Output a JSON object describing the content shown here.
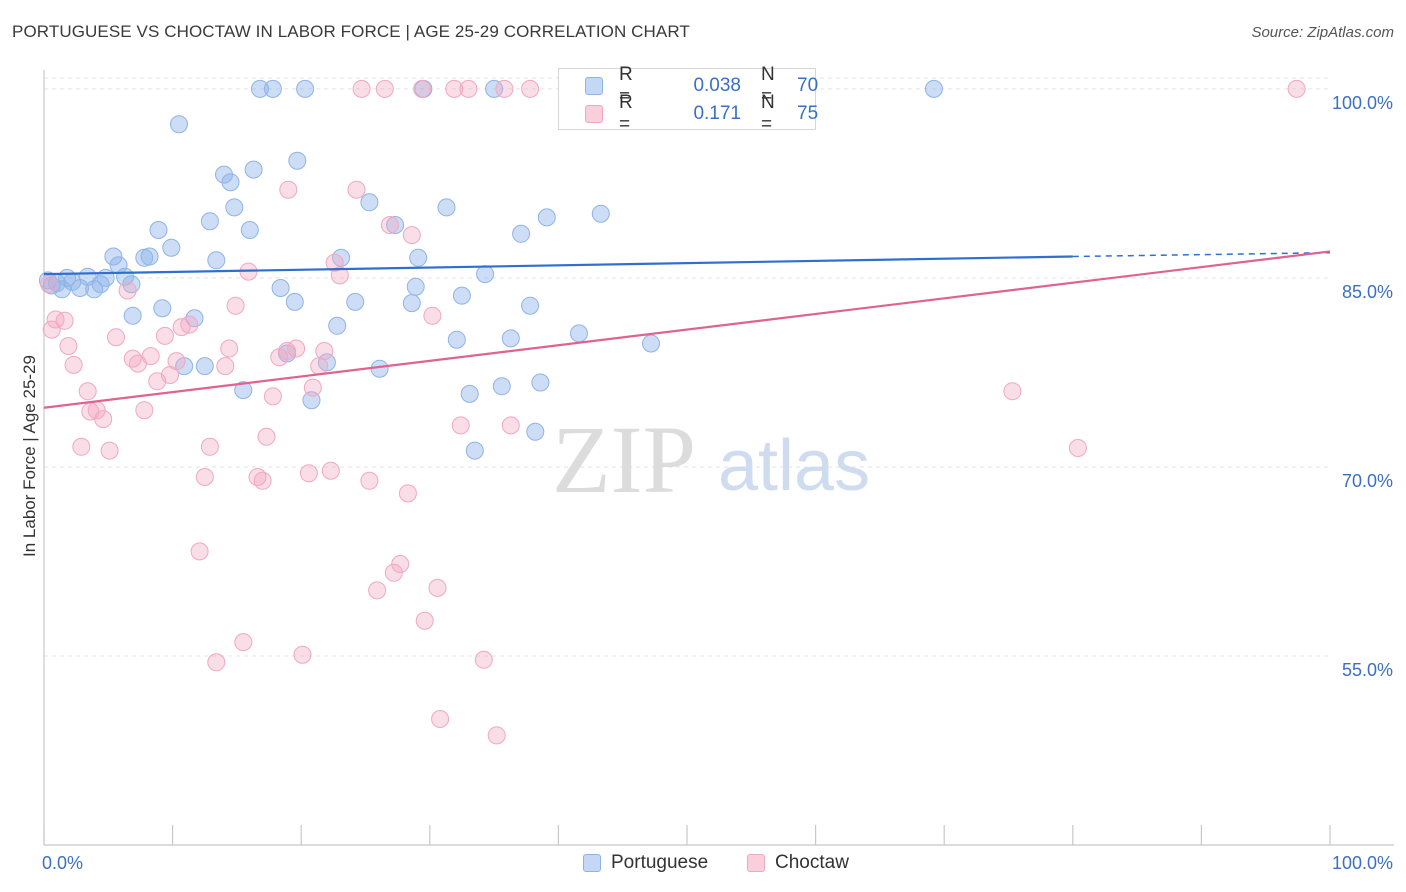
{
  "title": "PORTUGUESE VS CHOCTAW IN LABOR FORCE | AGE 25-29 CORRELATION CHART",
  "source": "Source: ZipAtlas.com",
  "watermark": {
    "zip": "ZIP",
    "atlas": "atlas"
  },
  "legend_box": {
    "rows": [
      {
        "r_label": "R =",
        "r_value": "0.038",
        "n_label": "N =",
        "n_value": "70",
        "color": "#8fb4e8"
      },
      {
        "r_label": "R =",
        "r_value": "0.171",
        "n_label": "N =",
        "n_value": "75",
        "color": "#f2a7c0"
      }
    ]
  },
  "chart_data": {
    "type": "scatter",
    "title": "PORTUGUESE VS CHOCTAW IN LABOR FORCE | AGE 25-29 CORRELATION CHART",
    "xlabel": "",
    "ylabel": "In Labor Force | Age 25-29",
    "xlim": [
      0,
      100
    ],
    "ylim": [
      40,
      101.5
    ],
    "x_tick_labels": [
      {
        "value": 0,
        "label": "0.0%"
      },
      {
        "value": 100,
        "label": "100.0%"
      }
    ],
    "y_tick_labels": [
      {
        "value": 100,
        "label": "100.0%"
      },
      {
        "value": 85,
        "label": "85.0%"
      },
      {
        "value": 70,
        "label": "70.0%"
      },
      {
        "value": 55,
        "label": "55.0%"
      }
    ],
    "grid": true,
    "legend": [
      "Portuguese",
      "Choctaw"
    ],
    "series": [
      {
        "name": "Portuguese",
        "color": "#8fb4e8",
        "line_color": "#2f6fd0",
        "trend": {
          "x0": 0,
          "y0": 85.3,
          "x1": 80,
          "y1": 86.7,
          "dash_to_x": 100,
          "dash_to_y": 87.0
        },
        "points": [
          [
            0.3,
            84.8
          ],
          [
            0.6,
            84.4
          ],
          [
            1.0,
            84.6
          ],
          [
            1.4,
            84.1
          ],
          [
            1.8,
            85.0
          ],
          [
            2.2,
            84.7
          ],
          [
            2.8,
            84.2
          ],
          [
            3.4,
            85.1
          ],
          [
            3.9,
            84.1
          ],
          [
            4.4,
            84.5
          ],
          [
            4.8,
            85.0
          ],
          [
            5.4,
            86.7
          ],
          [
            5.8,
            86.0
          ],
          [
            6.3,
            85.1
          ],
          [
            6.8,
            84.5
          ],
          [
            6.9,
            82.0
          ],
          [
            7.8,
            86.6
          ],
          [
            8.2,
            86.7
          ],
          [
            8.9,
            88.8
          ],
          [
            9.2,
            82.6
          ],
          [
            9.9,
            87.4
          ],
          [
            10.5,
            97.2
          ],
          [
            10.9,
            78.0
          ],
          [
            11.7,
            81.8
          ],
          [
            12.5,
            78.0
          ],
          [
            12.9,
            89.5
          ],
          [
            13.4,
            86.4
          ],
          [
            14.0,
            93.2
          ],
          [
            14.5,
            92.6
          ],
          [
            14.8,
            90.6
          ],
          [
            15.5,
            76.1
          ],
          [
            16.0,
            88.8
          ],
          [
            16.3,
            93.6
          ],
          [
            16.8,
            100.0
          ],
          [
            17.8,
            100.0
          ],
          [
            18.4,
            84.2
          ],
          [
            18.9,
            79.0
          ],
          [
            19.5,
            83.1
          ],
          [
            19.7,
            94.3
          ],
          [
            20.3,
            100.0
          ],
          [
            20.8,
            75.3
          ],
          [
            22.0,
            78.3
          ],
          [
            22.8,
            81.2
          ],
          [
            23.1,
            86.6
          ],
          [
            24.2,
            83.1
          ],
          [
            25.3,
            91.0
          ],
          [
            26.1,
            77.8
          ],
          [
            27.3,
            89.2
          ],
          [
            28.6,
            83.0
          ],
          [
            28.9,
            84.3
          ],
          [
            29.1,
            86.6
          ],
          [
            29.5,
            100.0
          ],
          [
            31.3,
            90.6
          ],
          [
            32.1,
            80.1
          ],
          [
            32.5,
            83.6
          ],
          [
            33.1,
            75.8
          ],
          [
            33.5,
            71.3
          ],
          [
            34.3,
            85.3
          ],
          [
            35.0,
            100.0
          ],
          [
            35.6,
            76.4
          ],
          [
            36.3,
            80.2
          ],
          [
            37.1,
            88.5
          ],
          [
            37.8,
            82.8
          ],
          [
            38.2,
            72.8
          ],
          [
            38.6,
            76.7
          ],
          [
            39.1,
            89.8
          ],
          [
            41.6,
            80.6
          ],
          [
            43.3,
            90.1
          ],
          [
            47.2,
            79.8
          ],
          [
            69.2,
            100.0
          ]
        ]
      },
      {
        "name": "Choctaw",
        "color": "#f2a7c0",
        "line_color": "#e0628f",
        "trend": {
          "x0": 0,
          "y0": 74.7,
          "x1": 100,
          "y1": 87.1
        },
        "points": [
          [
            0.4,
            84.5
          ],
          [
            0.6,
            80.9
          ],
          [
            0.9,
            81.7
          ],
          [
            1.6,
            81.6
          ],
          [
            1.9,
            79.6
          ],
          [
            2.3,
            78.1
          ],
          [
            2.9,
            71.6
          ],
          [
            3.4,
            76.0
          ],
          [
            3.6,
            74.4
          ],
          [
            4.1,
            74.5
          ],
          [
            4.6,
            73.8
          ],
          [
            5.1,
            71.3
          ],
          [
            5.6,
            80.3
          ],
          [
            6.5,
            84.0
          ],
          [
            6.9,
            78.6
          ],
          [
            7.3,
            78.2
          ],
          [
            7.8,
            74.5
          ],
          [
            8.3,
            78.8
          ],
          [
            8.8,
            76.8
          ],
          [
            9.4,
            80.4
          ],
          [
            9.8,
            77.3
          ],
          [
            10.3,
            78.4
          ],
          [
            10.7,
            81.1
          ],
          [
            11.3,
            81.3
          ],
          [
            12.1,
            63.3
          ],
          [
            12.5,
            69.2
          ],
          [
            12.9,
            71.6
          ],
          [
            13.4,
            54.5
          ],
          [
            14.1,
            78.0
          ],
          [
            14.4,
            79.4
          ],
          [
            14.9,
            82.8
          ],
          [
            15.5,
            56.1
          ],
          [
            15.9,
            85.5
          ],
          [
            16.6,
            69.2
          ],
          [
            17.0,
            68.9
          ],
          [
            17.3,
            72.4
          ],
          [
            17.8,
            75.6
          ],
          [
            18.3,
            78.7
          ],
          [
            18.9,
            79.2
          ],
          [
            19.0,
            92.0
          ],
          [
            19.6,
            79.4
          ],
          [
            20.1,
            55.1
          ],
          [
            20.6,
            69.5
          ],
          [
            20.9,
            76.3
          ],
          [
            21.4,
            78.0
          ],
          [
            21.8,
            79.2
          ],
          [
            22.3,
            69.7
          ],
          [
            22.6,
            86.2
          ],
          [
            23.0,
            85.2
          ],
          [
            24.3,
            92.0
          ],
          [
            24.7,
            100.0
          ],
          [
            25.3,
            68.9
          ],
          [
            25.9,
            60.2
          ],
          [
            26.5,
            100.0
          ],
          [
            26.9,
            89.2
          ],
          [
            27.2,
            61.6
          ],
          [
            27.7,
            62.3
          ],
          [
            28.3,
            67.9
          ],
          [
            28.6,
            88.4
          ],
          [
            29.4,
            100.0
          ],
          [
            29.6,
            57.8
          ],
          [
            30.2,
            82.0
          ],
          [
            30.6,
            60.4
          ],
          [
            30.8,
            50.0
          ],
          [
            31.9,
            100.0
          ],
          [
            32.4,
            73.3
          ],
          [
            33.0,
            100.0
          ],
          [
            34.2,
            54.7
          ],
          [
            35.2,
            48.7
          ],
          [
            35.8,
            100.0
          ],
          [
            36.3,
            73.3
          ],
          [
            37.8,
            100.0
          ],
          [
            75.3,
            76.0
          ],
          [
            80.4,
            71.5
          ],
          [
            97.4,
            100.0
          ]
        ]
      }
    ]
  }
}
